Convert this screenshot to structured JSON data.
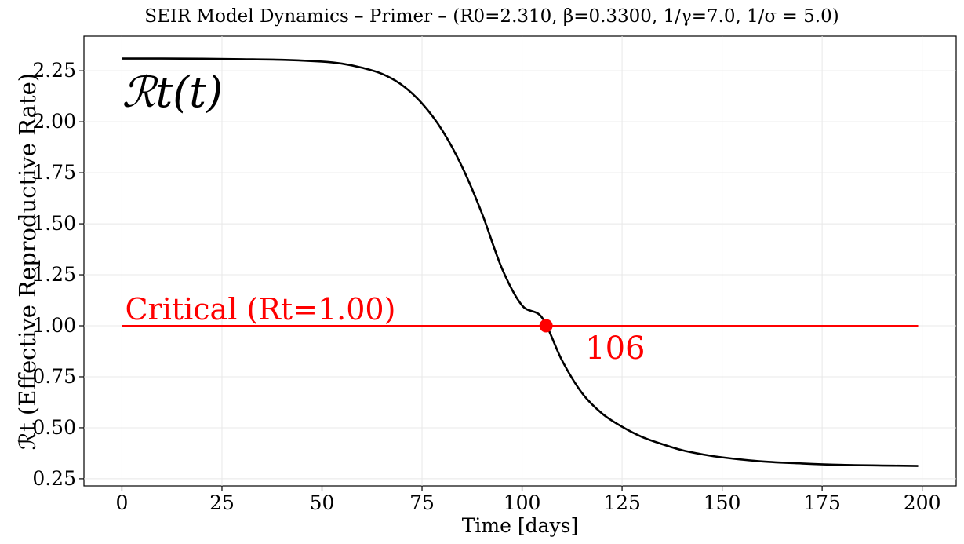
{
  "chart_data": {
    "type": "line",
    "title": "SEIR Model Dynamics – Primer – (R0=2.310, β=0.3300, 1/γ=7.0, 1/σ = 5.0)",
    "xlabel": "Time [days]",
    "ylabel": "ℛt (Effective Reproductive Rate)",
    "xlim": [
      -9.5,
      208.5
    ],
    "ylim": [
      0.215,
      2.42
    ],
    "x_ticks": [
      0,
      25,
      50,
      75,
      100,
      125,
      150,
      175,
      200
    ],
    "y_ticks": [
      0.25,
      0.5,
      0.75,
      1.0,
      1.25,
      1.5,
      1.75,
      2.0,
      2.25
    ],
    "y_tick_labels": [
      "0.25",
      "0.50",
      "0.75",
      "1.00",
      "1.25",
      "1.50",
      "1.75",
      "2.00",
      "2.25"
    ],
    "grid": true,
    "series": [
      {
        "color": "#000000",
        "x": [
          0,
          10,
          20,
          30,
          40,
          50,
          55,
          60,
          65,
          70,
          75,
          80,
          85,
          90,
          95,
          100,
          105,
          110,
          115,
          120,
          125,
          130,
          135,
          140,
          145,
          150,
          160,
          170,
          180,
          190,
          199
        ],
        "y": [
          2.31,
          2.31,
          2.309,
          2.307,
          2.304,
          2.295,
          2.285,
          2.265,
          2.235,
          2.18,
          2.09,
          1.96,
          1.78,
          1.55,
          1.28,
          1.1,
          1.04,
          0.83,
          0.67,
          0.57,
          0.505,
          0.455,
          0.42,
          0.39,
          0.37,
          0.355,
          0.335,
          0.325,
          0.318,
          0.315,
          0.313
        ]
      }
    ],
    "critical_line": {
      "y": 1.0,
      "x_start": 0,
      "x_end": 199,
      "color": "#ff0000",
      "label": "Critical (Rt=1.00)"
    },
    "crossing_point": {
      "x": 106,
      "y": 1.0,
      "color": "#ff0000",
      "label": "106"
    },
    "inline_label": "ℛt(t)"
  }
}
